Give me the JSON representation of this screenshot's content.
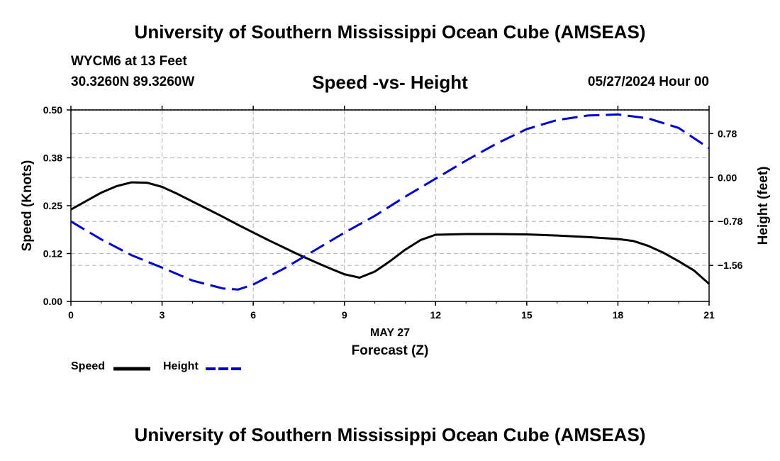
{
  "header": {
    "title": "University of Southern Mississippi Ocean Cube (AMSEAS)",
    "station": "WYCM6 at 13 Feet",
    "coords": "30.3260N  89.3260W",
    "timestamp": "05/27/2024 Hour 00",
    "footer_title": "University of Southern Mississippi Ocean Cube (AMSEAS)"
  },
  "colors": {
    "speed": "#000000",
    "height": "#0000cc",
    "grid": "#bbbbbb"
  },
  "chart_data": {
    "type": "line",
    "title": "Speed -vs- Height",
    "xlabel": "Forecast (Z)",
    "xlabel_date": "MAY 27",
    "ylabel": "Speed (Knots)",
    "y2label": "Height (feet)",
    "xlim": [
      0,
      21
    ],
    "ylim": [
      0,
      0.5
    ],
    "y2lim": [
      -2.2,
      1.2
    ],
    "x_ticks": [
      0,
      3,
      6,
      9,
      12,
      15,
      18,
      21
    ],
    "x_tick_labels": [
      "0",
      "3",
      "6",
      "9",
      "12",
      "15",
      "18",
      "21"
    ],
    "y_ticks": [
      0,
      0.125,
      0.25,
      0.375,
      0.5
    ],
    "y_tick_labels": [
      "0.00",
      "0.12",
      "0.25",
      "0.38",
      "0.50"
    ],
    "y2_ticks": [
      -1.56,
      -0.78,
      0,
      0.78
    ],
    "y2_tick_labels": [
      "−1.56",
      "−0.78",
      "0.00",
      "0.78"
    ],
    "series": [
      {
        "name": "Speed",
        "axis": "left",
        "style": "solid",
        "x": [
          0,
          0.5,
          1,
          1.5,
          2,
          2.5,
          3,
          3.5,
          4,
          4.5,
          5,
          5.5,
          6,
          6.5,
          7,
          7.5,
          8,
          8.5,
          9,
          9.5,
          10,
          10.5,
          11,
          11.5,
          12,
          13,
          14,
          15,
          16,
          17,
          18,
          18.5,
          19,
          19.5,
          20,
          20.5,
          21
        ],
        "values": [
          0.24,
          0.262,
          0.284,
          0.301,
          0.311,
          0.31,
          0.299,
          0.281,
          0.261,
          0.241,
          0.221,
          0.2,
          0.18,
          0.16,
          0.141,
          0.122,
          0.104,
          0.087,
          0.071,
          0.062,
          0.078,
          0.105,
          0.135,
          0.16,
          0.174,
          0.176,
          0.176,
          0.175,
          0.172,
          0.168,
          0.163,
          0.158,
          0.145,
          0.127,
          0.105,
          0.081,
          0.046
        ]
      },
      {
        "name": "Height",
        "axis": "right",
        "style": "dashed",
        "x": [
          0,
          1,
          2,
          3,
          4,
          5,
          5.5,
          6,
          7,
          8,
          9,
          10,
          11,
          12,
          13,
          14,
          15,
          16,
          17,
          18,
          19,
          20,
          21
        ],
        "values": [
          -0.78,
          -1.1,
          -1.38,
          -1.6,
          -1.83,
          -1.97,
          -1.99,
          -1.9,
          -1.62,
          -1.3,
          -0.98,
          -0.68,
          -0.34,
          -0.02,
          0.3,
          0.6,
          0.86,
          1.02,
          1.1,
          1.12,
          1.05,
          0.88,
          0.52
        ]
      }
    ],
    "legend": [
      {
        "label": "Speed",
        "series": "Speed"
      },
      {
        "label": "Height",
        "series": "Height"
      }
    ]
  }
}
